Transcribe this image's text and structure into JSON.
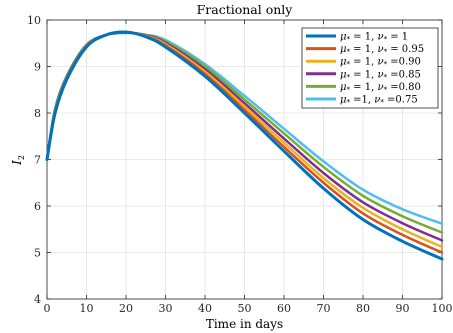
{
  "chart_data": {
    "type": "line",
    "title": "Fractional only",
    "xlabel": "Time in days",
    "ylabel": "I",
    "ylabel_subscript": "2",
    "xlim": [
      0,
      100
    ],
    "ylim": [
      4,
      10
    ],
    "xticks": [
      "0",
      "10",
      "20",
      "30",
      "40",
      "50",
      "60",
      "70",
      "80",
      "90",
      "100"
    ],
    "yticks": [
      "4",
      "5",
      "6",
      "7",
      "8",
      "9",
      "10"
    ],
    "grid": true,
    "legend_position": "top-right",
    "x": [
      0,
      2,
      5,
      10,
      15,
      20,
      25,
      30,
      40,
      50,
      60,
      70,
      80,
      90,
      100
    ],
    "series": [
      {
        "name": "μ* = 1, ν* = 1",
        "legend_mu": "μ",
        "legend_mid": " = 1, ",
        "legend_nu": "ν",
        "legend_end": " = 1",
        "color": "#0072bd",
        "width": 3,
        "values": [
          7.0,
          7.98,
          8.72,
          9.42,
          9.68,
          9.74,
          9.64,
          9.42,
          8.79,
          8.0,
          7.18,
          6.38,
          5.71,
          5.24,
          4.86
        ]
      },
      {
        "name": "μ* = 1, ν* = 0.95",
        "legend_mu": "μ",
        "legend_mid": " = 1, ",
        "legend_nu": "ν",
        "legend_end": " = 0.95",
        "color": "#d95319",
        "width": 2.5,
        "values": [
          7.0,
          8.0,
          8.74,
          9.43,
          9.68,
          9.74,
          9.65,
          9.45,
          8.84,
          8.07,
          7.27,
          6.5,
          5.84,
          5.38,
          5.0
        ]
      },
      {
        "name": "μ* = 1, ν* =0.90",
        "legend_mu": "μ",
        "legend_mid": " = 1, ",
        "legend_nu": "ν",
        "legend_end": " =0.90",
        "color": "#edb120",
        "width": 2.5,
        "values": [
          7.0,
          8.02,
          8.75,
          9.44,
          9.68,
          9.74,
          9.66,
          9.48,
          8.89,
          8.14,
          7.36,
          6.6,
          5.96,
          5.5,
          5.12
        ]
      },
      {
        "name": "μ* = 1, ν* =0.85",
        "legend_mu": "μ",
        "legend_mid": " = 1, ",
        "legend_nu": "ν",
        "legend_end": " =0.85",
        "color": "#7e2f8e",
        "width": 2.5,
        "values": [
          7.0,
          8.04,
          8.77,
          9.45,
          9.68,
          9.73,
          9.67,
          9.51,
          8.94,
          8.21,
          7.45,
          6.71,
          6.08,
          5.63,
          5.26
        ]
      },
      {
        "name": "μ* = 1, ν* =0.80",
        "legend_mu": "μ",
        "legend_mid": " = 1, ",
        "legend_nu": "ν",
        "legend_end": " =0.80",
        "color": "#77ac30",
        "width": 2.5,
        "values": [
          7.0,
          8.06,
          8.79,
          9.46,
          9.68,
          9.73,
          9.68,
          9.54,
          9.0,
          8.29,
          7.56,
          6.84,
          6.22,
          5.78,
          5.43
        ]
      },
      {
        "name": "μ* =1, ν* =0.75",
        "legend_mu": "μ",
        "legend_mid": " =1, ",
        "legend_nu": "ν",
        "legend_end": " =0.75",
        "color": "#4dbeee",
        "width": 2.5,
        "values": [
          7.0,
          8.08,
          8.8,
          9.47,
          9.68,
          9.72,
          9.68,
          9.57,
          9.05,
          8.37,
          7.66,
          6.96,
          6.35,
          5.93,
          5.62
        ]
      }
    ]
  }
}
